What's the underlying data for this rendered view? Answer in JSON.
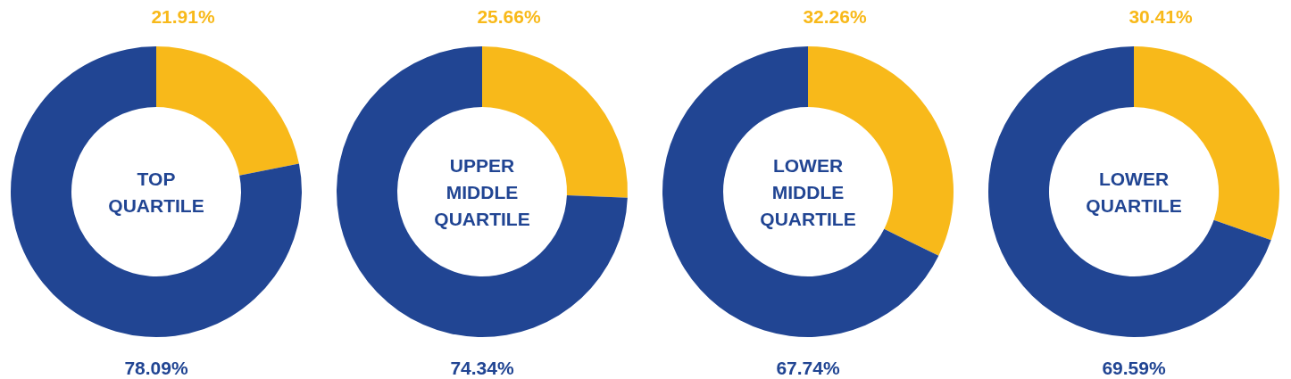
{
  "chart_data": [
    {
      "type": "donut",
      "title": "TOP QUARTILE",
      "categories": [
        null,
        null
      ],
      "values": [
        21.91,
        78.09
      ],
      "colors": [
        "#f8b91a",
        "#214593"
      ],
      "value_labels": [
        "21.91%",
        "78.09%"
      ]
    },
    {
      "type": "donut",
      "title": "UPPER MIDDLE QUARTILE",
      "categories": [
        null,
        null
      ],
      "values": [
        25.66,
        74.34
      ],
      "colors": [
        "#f8b91a",
        "#214593"
      ],
      "value_labels": [
        "25.66%",
        "74.34%"
      ]
    },
    {
      "type": "donut",
      "title": "LOWER MIDDLE QUARTILE",
      "categories": [
        null,
        null
      ],
      "values": [
        32.26,
        67.74
      ],
      "colors": [
        "#f8b91a",
        "#214593"
      ],
      "value_labels": [
        "32.26%",
        "67.74%"
      ]
    },
    {
      "type": "donut",
      "title": "LOWER QUARTILE",
      "categories": [
        null,
        null
      ],
      "values": [
        30.41,
        69.59
      ],
      "colors": [
        "#f8b91a",
        "#214593"
      ],
      "value_labels": [
        "30.41%",
        "69.59%"
      ]
    }
  ]
}
